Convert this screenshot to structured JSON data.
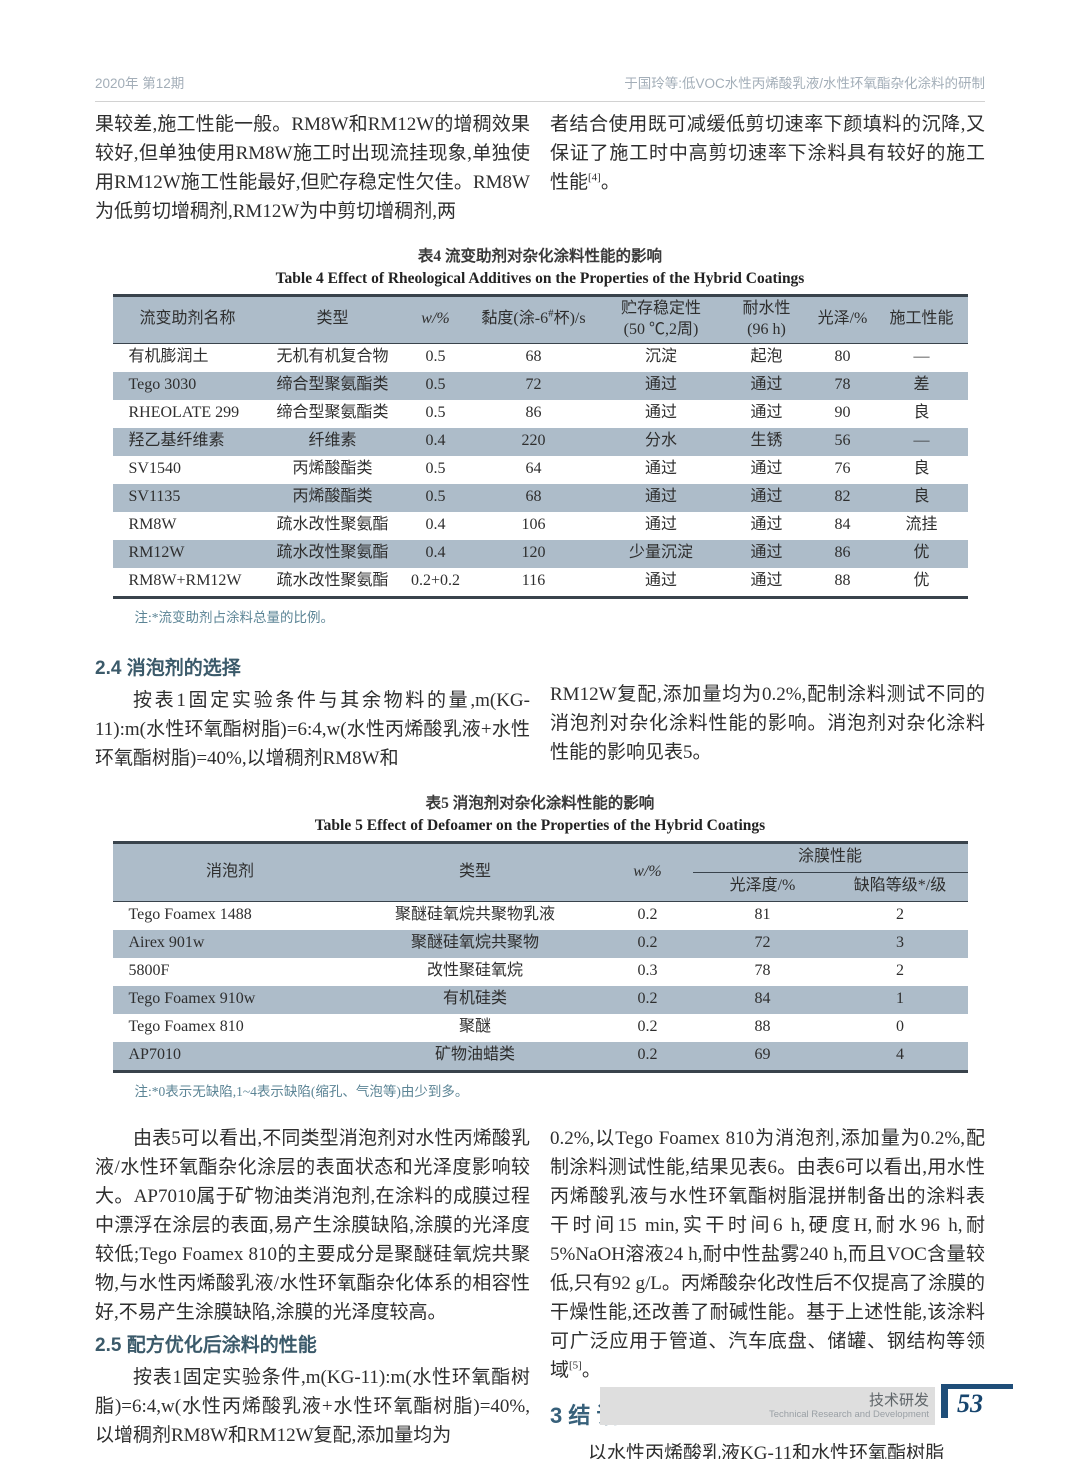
{
  "header": {
    "issue": "2020年  第12期",
    "running_title": "于国玲等:低VOC水性丙烯酸乳液/水性环氧酯杂化涂料的研制"
  },
  "intro": {
    "left": "果较差,施工性能一般。RM8W和RM12W的增稠效果较好,但单独使用RM8W施工时出现流挂现象,单独使用RM12W施工性能最好,但贮存稳定性欠佳。RM8W为低剪切增稠剂,RM12W为中剪切增稠剂,两",
    "right_text": "者结合使用既可减缓低剪切速率下颜填料的沉降,又保证了施工时中高剪切速率下涂料具有较好的施工性能",
    "right_ref": "[4]",
    "right_tail": "。"
  },
  "table4": {
    "title_cn": "表4  流变助剂对杂化涂料性能的影响",
    "title_en": "Table 4   Effect of Rheological Additives on the Properties of the Hybrid Coatings",
    "headers": {
      "name": "流变助剂名称",
      "type": "类型",
      "w": "w/%",
      "viscosity_pre": "黏度(涂-6",
      "viscosity_sup": "#",
      "viscosity_post": "杯)/s",
      "storage": "贮存稳定性\n(50 ℃,2周)",
      "water": "耐水性\n(96 h)",
      "gloss": "光泽/%",
      "workability": "施工性能"
    },
    "rows": [
      [
        "有机膨润土",
        "无机有机复合物",
        "0.5",
        "68",
        "沉淀",
        "起泡",
        "80",
        "—"
      ],
      [
        "Tego 3030",
        "缔合型聚氨酯类",
        "0.5",
        "72",
        "通过",
        "通过",
        "78",
        "差"
      ],
      [
        "RHEOLATE 299",
        "缔合型聚氨酯类",
        "0.5",
        "86",
        "通过",
        "通过",
        "90",
        "良"
      ],
      [
        "羟乙基纤维素",
        "纤维素",
        "0.4",
        "220",
        "分水",
        "生锈",
        "56",
        "—"
      ],
      [
        "SV1540",
        "丙烯酸酯类",
        "0.5",
        "64",
        "通过",
        "通过",
        "76",
        "良"
      ],
      [
        "SV1135",
        "丙烯酸酯类",
        "0.5",
        "68",
        "通过",
        "通过",
        "82",
        "良"
      ],
      [
        "RM8W",
        "疏水改性聚氨酯",
        "0.4",
        "106",
        "通过",
        "通过",
        "84",
        "流挂"
      ],
      [
        "RM12W",
        "疏水改性聚氨酯",
        "0.4",
        "120",
        "少量沉淀",
        "通过",
        "86",
        "优"
      ],
      [
        "RM8W+RM12W",
        "疏水改性聚氨酯",
        "0.2+0.2",
        "116",
        "通过",
        "通过",
        "88",
        "优"
      ]
    ],
    "note": "注:*流变助剂占涂料总量的比例。"
  },
  "section24": {
    "heading": "2.4   消泡剂的选择",
    "left": "按表1固定实验条件与其余物料的量,m(KG-11):m(水性环氧酯树脂)=6:4,w(水性丙烯酸乳液+水性环氧酯树脂)=40%,以增稠剂RM8W和",
    "right": "RM12W复配,添加量均为0.2%,配制涂料测试不同的消泡剂对杂化涂料性能的影响。消泡剂对杂化涂料性能的影响见表5。"
  },
  "table5": {
    "title_cn": "表5  消泡剂对杂化涂料性能的影响",
    "title_en": "Table 5   Effect of Defoamer on the Properties of the Hybrid Coatings",
    "headers": {
      "defoamer": "消泡剂",
      "type": "类型",
      "w": "w/%",
      "film": "涂膜性能",
      "gloss": "光泽度/%",
      "defect": "缺陷等级*/级"
    },
    "rows": [
      [
        "Tego Foamex 1488",
        "聚醚硅氧烷共聚物乳液",
        "0.2",
        "81",
        "2"
      ],
      [
        "Airex 901w",
        "聚醚硅氧烷共聚物",
        "0.2",
        "72",
        "3"
      ],
      [
        "5800F",
        "改性聚硅氧烷",
        "0.3",
        "78",
        "2"
      ],
      [
        "Tego Foamex 910w",
        "有机硅类",
        "0.2",
        "84",
        "1"
      ],
      [
        "Tego Foamex 810",
        "聚醚",
        "0.2",
        "88",
        "0"
      ],
      [
        "AP7010",
        "矿物油蜡类",
        "0.2",
        "69",
        "4"
      ]
    ],
    "note": "注:*0表示无缺陷,1~4表示缺陷(缩孔、气泡等)由少到多。"
  },
  "discussion": {
    "left_para": "由表5可以看出,不同类型消泡剂对水性丙烯酸乳液/水性环氧酯杂化涂层的表面状态和光泽度影响较大。AP7010属于矿物油类消泡剂,在涂料的成膜过程中漂浮在涂层的表面,易产生涂膜缺陷,涂膜的光泽度较低;Tego Foamex 810的主要成分是聚醚硅氧烷共聚物,与水性丙烯酸乳液/水性环氧酯杂化体系的相容性好,不易产生涂膜缺陷,涂膜的光泽度较高。",
    "section25_heading": "2.5   配方优化后涂料的性能",
    "section25_para": "按表1固定实验条件,m(KG-11):m(水性环氧酯树脂)=6:4,w(水性丙烯酸乳液+水性环氧酯树脂)=40%,以增稠剂RM8W和RM12W复配,添加量均为",
    "right_para": "0.2%,以Tego Foamex 810为消泡剂,添加量为0.2%,配制涂料测试性能,结果见表6。由表6可以看出,用水性丙烯酸乳液与水性环氧酯树脂混拼制备出的涂料表干时间15 min,实干时间6 h,硬度H,耐水96 h,耐5%NaOH溶液24 h,耐中性盐雾240 h,而且VOC含量较低,只有92 g/L。丙烯酸杂化改性后不仅提高了涂膜的干燥性能,还改善了耐碱性能。基于上述性能,该涂料可广泛应用于管道、汽车底盘、储罐、钢结构等领域",
    "right_ref": "[5]",
    "right_tail": "。",
    "section3_heading": "3   结  语",
    "section3_para": "以水性丙烯酸乳液KG-11和水性环氧酯树脂"
  },
  "footer": {
    "label_cn": "技术研发",
    "label_en": "Technical Research and Development",
    "page_number": "53"
  },
  "colors": {
    "accent_blue": "#1f4e79",
    "table_stripe": "#adbcc9",
    "heading_color": "#3b5a6a",
    "note_color": "#5b8495",
    "header_text": "#a3aeb8"
  }
}
